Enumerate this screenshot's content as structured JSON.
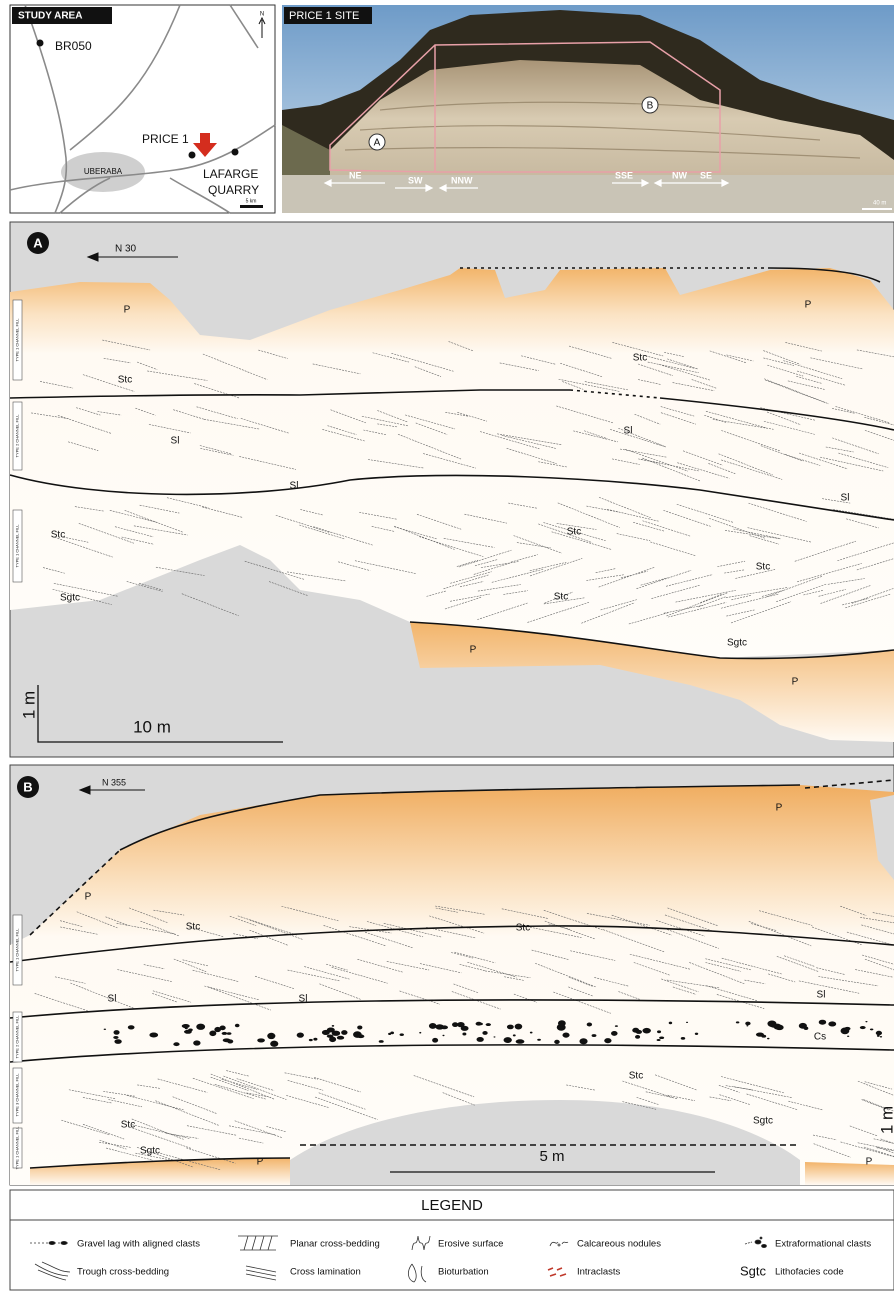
{
  "map": {
    "title": "STUDY AREA",
    "labels": [
      "BR050",
      "PRICE 1",
      "UBERABA",
      "LAFARGE",
      "QUARRY"
    ],
    "north": "N",
    "scale": "5 km"
  },
  "photo": {
    "title": "PRICE 1 SITE",
    "sites": [
      "A",
      "B"
    ],
    "directions": [
      "NE",
      "SW",
      "NNW",
      "SSE",
      "NW",
      "SE"
    ],
    "scale": "40 m"
  },
  "panel_a": {
    "id": "A",
    "orientation": "N 30",
    "channel_types": [
      "TYPE 1 CHANNEL FILL",
      "TYPE 2 CHANNEL FILL",
      "TYPE 1 CHANNEL FILL"
    ],
    "facies": [
      "P",
      "P",
      "Stc",
      "Stc",
      "Sl",
      "Sl",
      "Sl",
      "Sl",
      "Stc",
      "Stc",
      "Stc",
      "Stc",
      "Sgtc",
      "Sgtc",
      "P",
      "P"
    ],
    "scale_vertical": "1 m",
    "scale_horizontal": "10 m"
  },
  "panel_b": {
    "id": "B",
    "orientation": "N 355",
    "channel_types": [
      "TYPE 1 CHANNEL FILL",
      "TYPE 2 CHANNEL FILL",
      "TYPE 3 CHANNEL FILL",
      "TYPE 1 CHANNEL FILL"
    ],
    "facies": [
      "P",
      "P",
      "Stc",
      "Stc",
      "Sl",
      "Sl",
      "Sl",
      "Cs",
      "Stc",
      "Stc",
      "Sgtc",
      "Sgtc",
      "P",
      "P"
    ],
    "scale_vertical": "1 m",
    "scale_horizontal": "5 m"
  },
  "legend": {
    "title": "LEGEND",
    "items": [
      "Gravel lag with aligned clasts",
      "Planar cross-bedding",
      "Erosive surface",
      "Calcareous nodules",
      "Extraformational clasts",
      "Trough cross-bedding",
      "Cross lamination",
      "Bioturbation",
      "Intraclasts",
      "Lithofacies code"
    ],
    "code_example": "Sgtc"
  }
}
